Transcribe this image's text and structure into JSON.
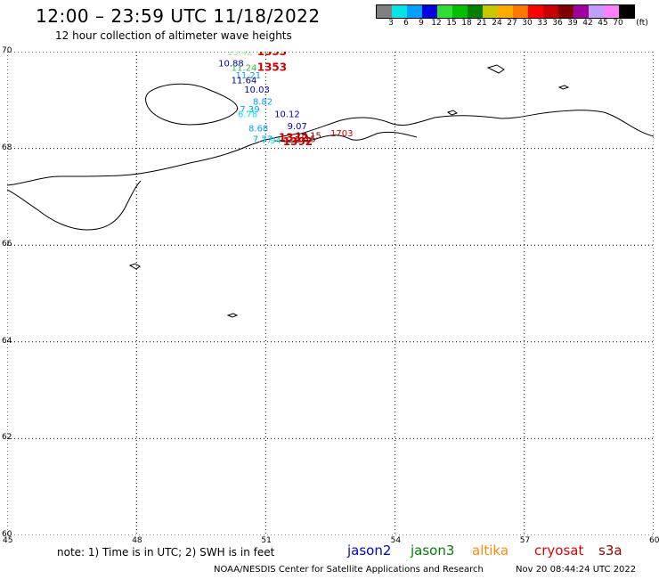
{
  "title": "12:00 – 23:59 UTC 11/18/2022",
  "subtitle": "12 hour collection of altimeter wave heights",
  "scale": {
    "unit": "(ft)",
    "labels": [
      "3",
      "6",
      "9",
      "12",
      "15",
      "18",
      "21",
      "24",
      "27",
      "30",
      "33",
      "36",
      "39",
      "42",
      "45",
      "70"
    ],
    "colors": [
      "#808080",
      "#00e5e5",
      "#00a0ff",
      "#0000e0",
      "#30e030",
      "#00c000",
      "#008000",
      "#c8c800",
      "#ffaa00",
      "#ff7800",
      "#ff0000",
      "#c80000",
      "#800000",
      "#a000a0",
      "#c0a0ff",
      "#ff80ff",
      "#000000"
    ]
  },
  "map": {
    "lat_ticks": [
      "70",
      "68",
      "66",
      "64",
      "62",
      "60"
    ],
    "lon_ticks": [
      "45",
      "48",
      "51",
      "54",
      "57",
      "60"
    ],
    "lat_range": [
      60,
      70
    ],
    "lon_range": [
      45,
      60
    ]
  },
  "observations": [
    {
      "text": "13.42",
      "color": "#90ee90",
      "lon": 50.1,
      "lat": 69.93,
      "big": false
    },
    {
      "text": "1353",
      "color": "#d00000",
      "lon": 50.8,
      "lat": 69.93,
      "big": true
    },
    {
      "text": "10.88",
      "color": "#0000c0",
      "lon": 49.9,
      "lat": 69.7,
      "big": false
    },
    {
      "text": "1353",
      "color": "#d00000",
      "lon": 50.8,
      "lat": 69.6,
      "big": true
    },
    {
      "text": "11.24",
      "color": "#30c030",
      "lon": 50.2,
      "lat": 69.6,
      "big": false
    },
    {
      "text": "11.21",
      "color": "#00a0ff",
      "lon": 50.3,
      "lat": 69.45,
      "big": false
    },
    {
      "text": "11.64",
      "color": "#000080",
      "lon": 50.2,
      "lat": 69.35,
      "big": false
    },
    {
      "text": "10.03",
      "color": "#0000c0",
      "lon": 50.5,
      "lat": 69.15,
      "big": false
    },
    {
      "text": "8.82",
      "color": "#00a0ff",
      "lon": 50.7,
      "lat": 68.9,
      "big": false
    },
    {
      "text": "7.39",
      "color": "#00a0ff",
      "lon": 50.4,
      "lat": 68.75,
      "big": false
    },
    {
      "text": "6.78",
      "color": "#00e5e5",
      "lon": 50.35,
      "lat": 68.65,
      "big": false
    },
    {
      "text": "10.12",
      "color": "#0000c0",
      "lon": 51.2,
      "lat": 68.65,
      "big": false
    },
    {
      "text": "9.07",
      "color": "#0000c0",
      "lon": 51.5,
      "lat": 68.4,
      "big": false
    },
    {
      "text": "8.68",
      "color": "#00a0ff",
      "lon": 50.6,
      "lat": 68.35,
      "big": false
    },
    {
      "text": "7.77",
      "color": "#00a0ff",
      "lon": 50.7,
      "lat": 68.13,
      "big": false
    },
    {
      "text": "7.94",
      "color": "#00e5e5",
      "lon": 50.9,
      "lat": 68.1,
      "big": false
    },
    {
      "text": "1392",
      "color": "#d00000",
      "lon": 51.4,
      "lat": 68.07,
      "big": true
    },
    {
      "text": "1332",
      "color": "#d00000",
      "lon": 51.3,
      "lat": 68.15,
      "big": true
    },
    {
      "text": "18.15",
      "color": "#800000",
      "lon": 51.7,
      "lat": 68.2,
      "big": false
    },
    {
      "text": "1703",
      "color": "#c80000",
      "lon": 52.5,
      "lat": 68.25,
      "big": false
    },
    {
      "text": "15",
      "color": "#800000",
      "lon": 51.9,
      "lat": 68.13,
      "big": false
    }
  ],
  "footer": {
    "note": "note:  1) Time is in UTC;  2) SWH is in feet",
    "satellites": [
      {
        "name": "jason2",
        "color": "#0000e0"
      },
      {
        "name": "jason3",
        "color": "#008000"
      },
      {
        "name": "altika",
        "color": "#ff8c00"
      },
      {
        "name": "cryosat",
        "color": "#e00000"
      },
      {
        "name": "s3a",
        "color": "#a00000"
      }
    ],
    "credit": "NOAA/NESDIS Center for Satellite Applications and Research",
    "timestamp": "Nov 20 08:44:24 UTC 2022"
  }
}
